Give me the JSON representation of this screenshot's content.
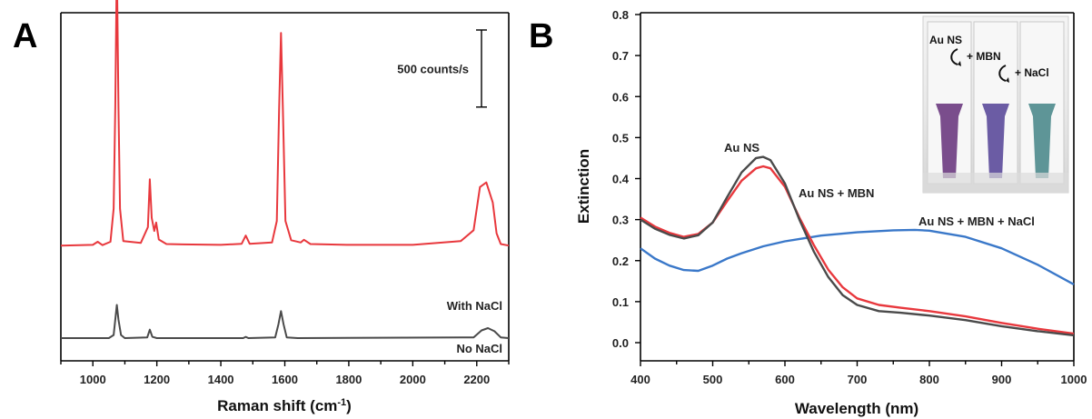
{
  "panels": {
    "a": {
      "letter": "A"
    },
    "b": {
      "letter": "B"
    }
  },
  "chart_data": [
    {
      "type": "line",
      "xlabel": "Raman shift (cm",
      "xlabel_sup": "-1",
      "xlabel_end": ")",
      "ylabel": "",
      "xlim": [
        900,
        2300
      ],
      "xticks": [
        1000,
        1200,
        1400,
        1600,
        1800,
        2000,
        2200
      ],
      "yaxis_visible": false,
      "scale_bar_label": "500 counts/s",
      "scale_bar_counts": 500,
      "series": [
        {
          "name": "With NaCl",
          "color": "#e8383d",
          "offset_counts": 600,
          "points": [
            [
              900,
              0
            ],
            [
              1000,
              5
            ],
            [
              1015,
              25
            ],
            [
              1030,
              3
            ],
            [
              1055,
              25
            ],
            [
              1065,
              240
            ],
            [
              1070,
              900
            ],
            [
              1075,
              1840
            ],
            [
              1080,
              900
            ],
            [
              1085,
              240
            ],
            [
              1095,
              30
            ],
            [
              1150,
              18
            ],
            [
              1172,
              120
            ],
            [
              1178,
              430
            ],
            [
              1184,
              180
            ],
            [
              1192,
              95
            ],
            [
              1198,
              150
            ],
            [
              1206,
              40
            ],
            [
              1230,
              10
            ],
            [
              1280,
              8
            ],
            [
              1400,
              5
            ],
            [
              1465,
              12
            ],
            [
              1478,
              65
            ],
            [
              1490,
              12
            ],
            [
              1560,
              20
            ],
            [
              1575,
              160
            ],
            [
              1582,
              880
            ],
            [
              1588,
              1380
            ],
            [
              1594,
              880
            ],
            [
              1602,
              160
            ],
            [
              1620,
              35
            ],
            [
              1650,
              20
            ],
            [
              1660,
              38
            ],
            [
              1680,
              10
            ],
            [
              1800,
              5
            ],
            [
              2000,
              5
            ],
            [
              2150,
              30
            ],
            [
              2190,
              100
            ],
            [
              2210,
              380
            ],
            [
              2230,
              410
            ],
            [
              2250,
              280
            ],
            [
              2262,
              80
            ],
            [
              2275,
              10
            ],
            [
              2300,
              0
            ]
          ]
        },
        {
          "name": "No NaCl",
          "color": "#4a4a4a",
          "offset_counts": 0,
          "points": [
            [
              900,
              0
            ],
            [
              1050,
              0
            ],
            [
              1065,
              20
            ],
            [
              1070,
              120
            ],
            [
              1075,
              215
            ],
            [
              1080,
              120
            ],
            [
              1088,
              20
            ],
            [
              1100,
              0
            ],
            [
              1170,
              5
            ],
            [
              1178,
              55
            ],
            [
              1186,
              8
            ],
            [
              1200,
              0
            ],
            [
              1470,
              0
            ],
            [
              1478,
              8
            ],
            [
              1486,
              0
            ],
            [
              1570,
              5
            ],
            [
              1580,
              90
            ],
            [
              1588,
              175
            ],
            [
              1596,
              90
            ],
            [
              1606,
              5
            ],
            [
              1640,
              0
            ],
            [
              2190,
              5
            ],
            [
              2215,
              50
            ],
            [
              2235,
              65
            ],
            [
              2255,
              45
            ],
            [
              2275,
              5
            ],
            [
              2300,
              0
            ]
          ]
        }
      ],
      "annotations": [
        "With NaCl",
        "No NaCl"
      ]
    },
    {
      "type": "line",
      "xlabel": "Wavelength (nm)",
      "ylabel": "Extinction",
      "xlim": [
        400,
        1000
      ],
      "ylim": [
        0,
        0.8
      ],
      "xticks": [
        400,
        500,
        600,
        700,
        800,
        900,
        1000
      ],
      "yticks": [
        "0.0",
        "0.1",
        "0.2",
        "0.3",
        "0.4",
        "0.5",
        "0.6",
        "0.7",
        "0.8"
      ],
      "series": [
        {
          "name": "Au NS",
          "color": "#4a4a4a",
          "points": [
            [
              400,
              0.3
            ],
            [
              420,
              0.278
            ],
            [
              440,
              0.263
            ],
            [
              460,
              0.254
            ],
            [
              480,
              0.262
            ],
            [
              500,
              0.293
            ],
            [
              520,
              0.355
            ],
            [
              540,
              0.415
            ],
            [
              560,
              0.45
            ],
            [
              570,
              0.453
            ],
            [
              580,
              0.445
            ],
            [
              600,
              0.388
            ],
            [
              620,
              0.3
            ],
            [
              640,
              0.222
            ],
            [
              660,
              0.16
            ],
            [
              680,
              0.116
            ],
            [
              700,
              0.092
            ],
            [
              730,
              0.077
            ],
            [
              760,
              0.073
            ],
            [
              800,
              0.066
            ],
            [
              850,
              0.055
            ],
            [
              900,
              0.04
            ],
            [
              950,
              0.028
            ],
            [
              1000,
              0.018
            ]
          ]
        },
        {
          "name": "Au NS + MBN",
          "color": "#e8383d",
          "points": [
            [
              400,
              0.305
            ],
            [
              420,
              0.283
            ],
            [
              440,
              0.268
            ],
            [
              460,
              0.258
            ],
            [
              480,
              0.265
            ],
            [
              500,
              0.293
            ],
            [
              520,
              0.345
            ],
            [
              540,
              0.395
            ],
            [
              560,
              0.425
            ],
            [
              570,
              0.43
            ],
            [
              580,
              0.425
            ],
            [
              600,
              0.38
            ],
            [
              620,
              0.305
            ],
            [
              640,
              0.238
            ],
            [
              660,
              0.178
            ],
            [
              680,
              0.135
            ],
            [
              700,
              0.108
            ],
            [
              730,
              0.092
            ],
            [
              760,
              0.085
            ],
            [
              800,
              0.077
            ],
            [
              850,
              0.064
            ],
            [
              900,
              0.048
            ],
            [
              950,
              0.034
            ],
            [
              1000,
              0.022
            ]
          ]
        },
        {
          "name": "Au NS + MBN + NaCl",
          "color": "#3a78c9",
          "points": [
            [
              400,
              0.23
            ],
            [
              420,
              0.205
            ],
            [
              440,
              0.188
            ],
            [
              460,
              0.177
            ],
            [
              480,
              0.175
            ],
            [
              500,
              0.188
            ],
            [
              520,
              0.205
            ],
            [
              540,
              0.218
            ],
            [
              570,
              0.235
            ],
            [
              600,
              0.247
            ],
            [
              650,
              0.261
            ],
            [
              700,
              0.269
            ],
            [
              750,
              0.274
            ],
            [
              780,
              0.275
            ],
            [
              800,
              0.273
            ],
            [
              850,
              0.258
            ],
            [
              900,
              0.23
            ],
            [
              950,
              0.19
            ],
            [
              1000,
              0.142
            ]
          ]
        }
      ],
      "annotations": [
        "Au NS",
        "Au NS + MBN",
        "Au NS + MBN + NaCl"
      ],
      "inset": {
        "labels": [
          "Au NS",
          "+ MBN",
          "+ NaCl"
        ],
        "cuvette_colors": [
          "#6b3a80",
          "#5b4a9a",
          "#4d8a8c"
        ]
      }
    }
  ]
}
